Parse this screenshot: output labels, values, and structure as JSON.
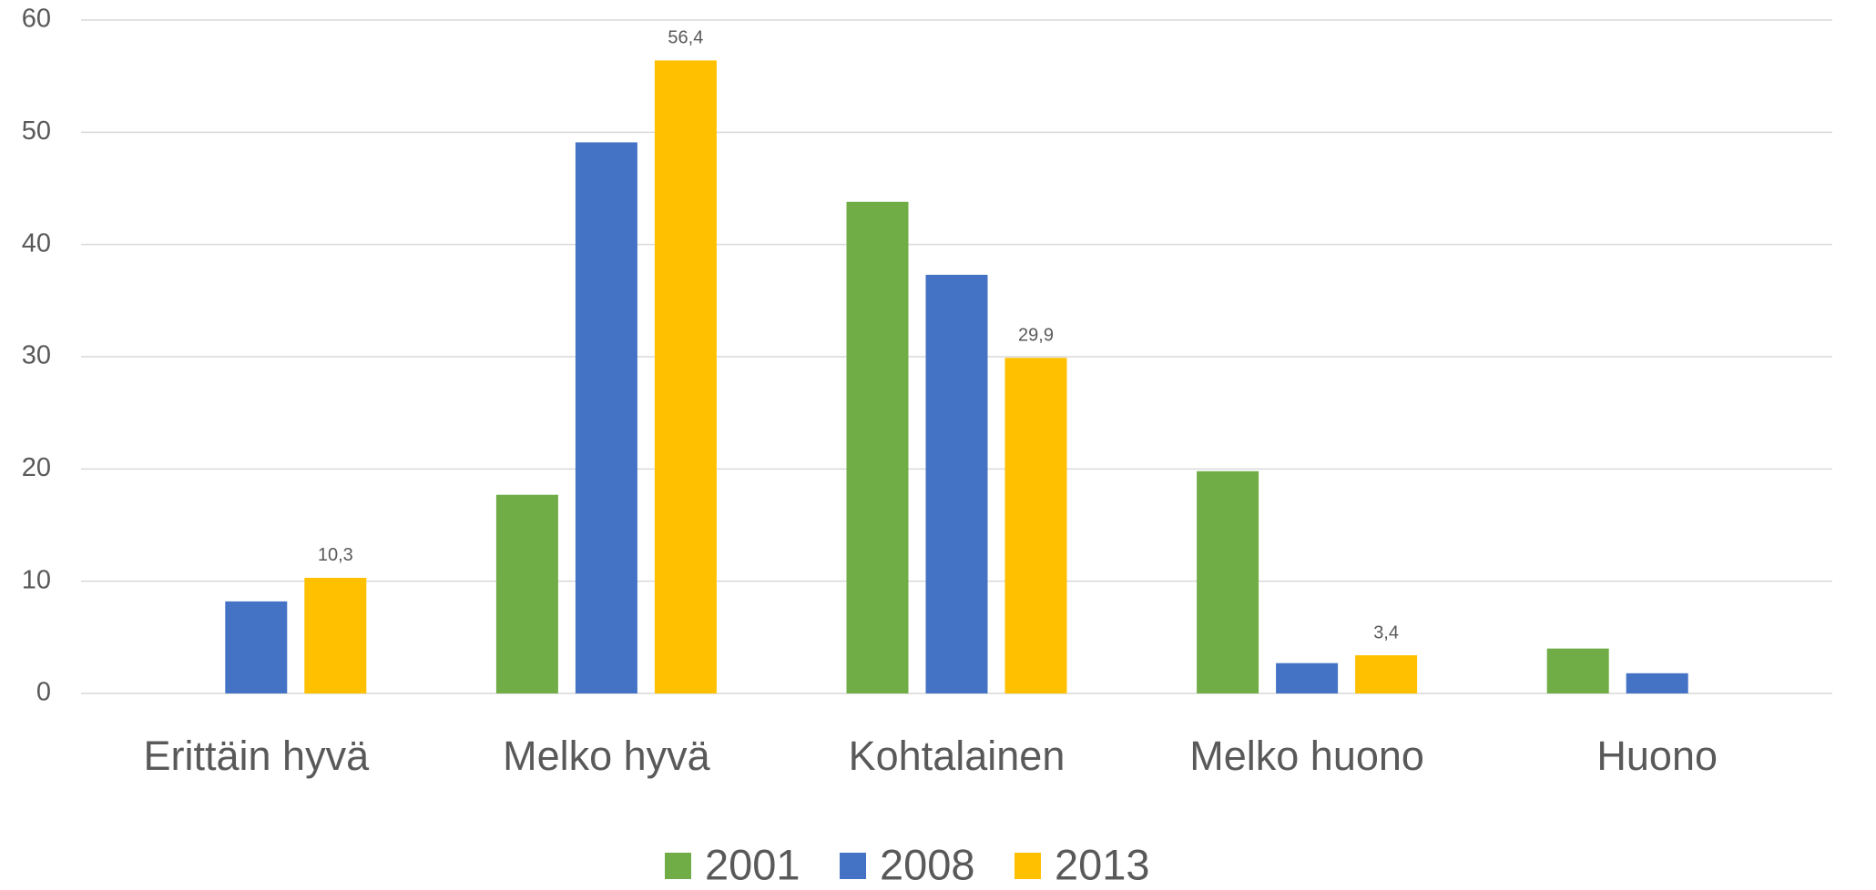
{
  "chart_data": {
    "type": "bar",
    "categories": [
      "Erittäin hyvä",
      "Melko hyvä",
      "Kohtalainen",
      "Melko huono",
      "Huono"
    ],
    "series": [
      {
        "name": "2001",
        "color": "#70ad47",
        "values": [
          null,
          17.7,
          43.8,
          19.8,
          4.0
        ]
      },
      {
        "name": "2008",
        "color": "#4472c4",
        "values": [
          8.2,
          49.1,
          37.3,
          2.7,
          1.8
        ]
      },
      {
        "name": "2013",
        "color": "#ffc000",
        "values": [
          10.3,
          56.4,
          29.9,
          3.4,
          null
        ],
        "value_labels": [
          "10,3",
          "56,4",
          "29,9",
          "3,4",
          null
        ]
      }
    ],
    "ylim": [
      0,
      60
    ],
    "yticks": [
      0,
      10,
      20,
      30,
      40,
      50,
      60
    ],
    "grid": true,
    "legend": "bottom"
  }
}
